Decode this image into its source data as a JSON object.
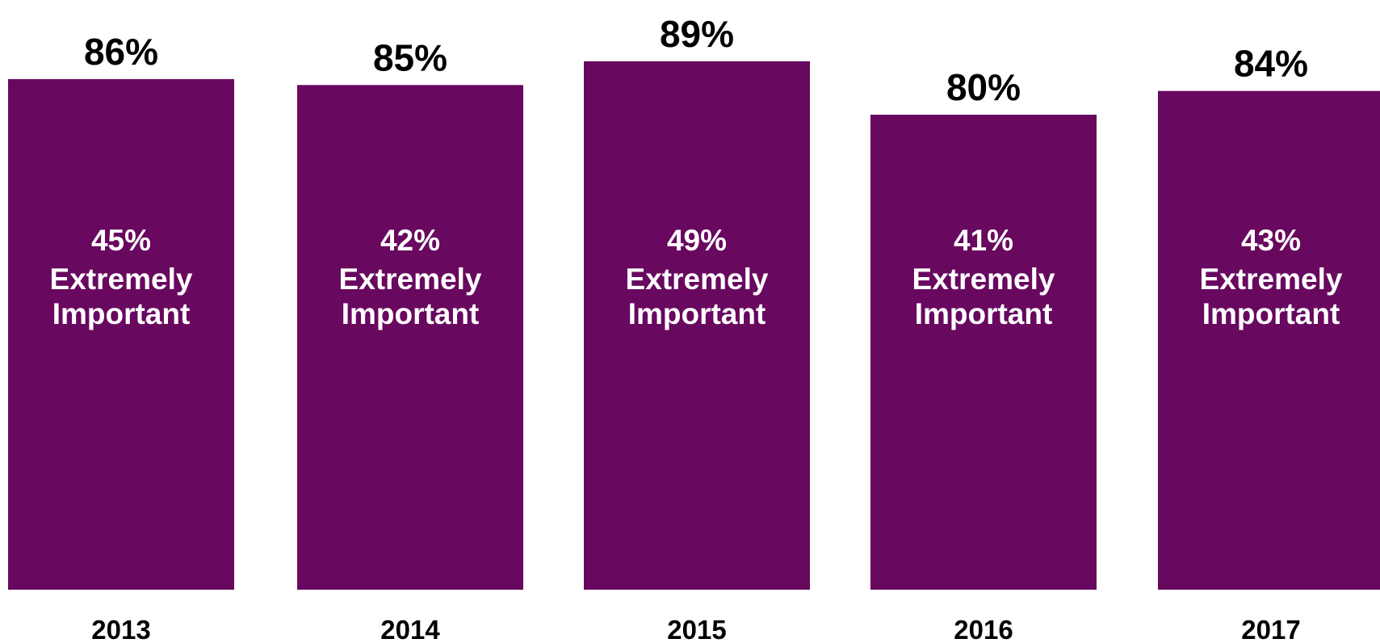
{
  "chart_data": {
    "type": "bar",
    "categories": [
      "2013",
      "2014",
      "2015",
      "2016",
      "2017"
    ],
    "values": [
      86,
      85,
      89,
      80,
      84
    ],
    "value_labels": [
      "86%",
      "85%",
      "89%",
      "80%",
      "84%"
    ],
    "inner_labels": [
      {
        "value": "45%",
        "line1": "Extremely",
        "line2": "Important"
      },
      {
        "value": "42%",
        "line1": "Extremely",
        "line2": "Important"
      },
      {
        "value": "49%",
        "line1": "Extremely",
        "line2": "Important"
      },
      {
        "value": "41%",
        "line1": "Extremely",
        "line2": "Important"
      },
      {
        "value": "43%",
        "line1": "Extremely",
        "line2": "Important"
      }
    ],
    "title": "",
    "xlabel": "",
    "ylabel": "",
    "ylim": [
      0,
      100
    ],
    "grid": false,
    "legend": "none",
    "bar_color": "#68085f"
  }
}
